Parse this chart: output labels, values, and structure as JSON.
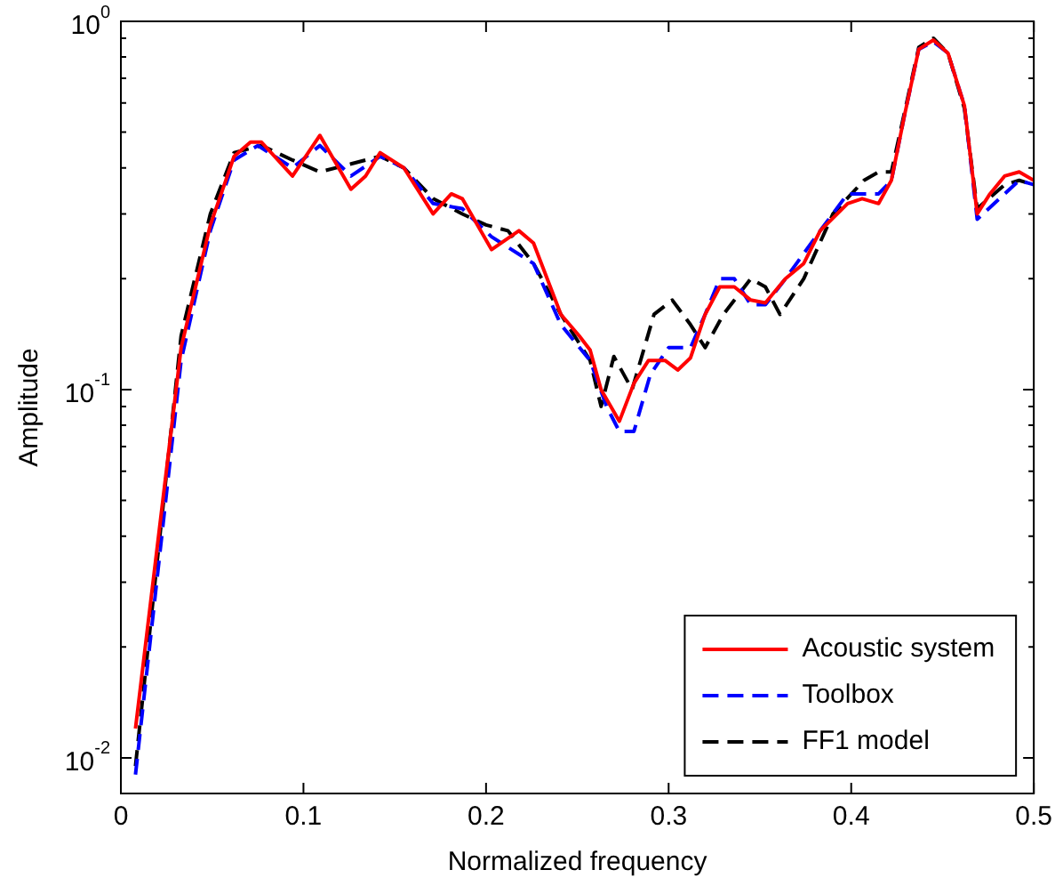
{
  "chart_data": {
    "type": "line",
    "xlabel": "Normalized frequency",
    "ylabel": "Amplitude",
    "log": "y",
    "legend": "bottom right",
    "grid": false,
    "xlim": [
      0,
      0.5
    ],
    "xticks": [
      0,
      0.1,
      0.2,
      0.3,
      0.4,
      0.5
    ],
    "ylim": [
      0.008,
      1
    ],
    "yticks": [
      {
        "value": 0.01,
        "label": "10$^{-2}$"
      },
      {
        "value": 0.02,
        "label": null
      },
      {
        "value": 0.03,
        "label": null
      },
      {
        "value": 0.04,
        "label": null
      },
      {
        "value": 0.05,
        "label": null
      },
      {
        "value": 0.06,
        "label": null
      },
      {
        "value": 0.07,
        "label": null
      },
      {
        "value": 0.08,
        "label": null
      },
      {
        "value": 0.09,
        "label": null
      },
      {
        "value": 0.1,
        "label": "10$^{-1}$"
      },
      {
        "value": 0.2,
        "label": null
      },
      {
        "value": 0.3,
        "label": null
      },
      {
        "value": 0.4,
        "label": null
      },
      {
        "value": 0.5,
        "label": null
      },
      {
        "value": 0.6,
        "label": null
      },
      {
        "value": 0.7,
        "label": null
      },
      {
        "value": 0.8,
        "label": null
      },
      {
        "value": 0.9,
        "label": null
      },
      {
        "value": 1,
        "label": "10$^{0}$"
      }
    ],
    "series": [
      {
        "name": "Acoustic system",
        "color": "#ff0000",
        "line_style": "solid",
        "x": [
          0.008,
          0.033,
          0.049,
          0.054,
          0.062,
          0.071,
          0.077,
          0.094,
          0.109,
          0.126,
          0.134,
          0.142,
          0.155,
          0.171,
          0.181,
          0.187,
          0.203,
          0.218,
          0.226,
          0.241,
          0.251,
          0.257,
          0.263,
          0.273,
          0.281,
          0.289,
          0.298,
          0.305,
          0.312,
          0.32,
          0.328,
          0.336,
          0.345,
          0.353,
          0.364,
          0.374,
          0.383,
          0.398,
          0.406,
          0.415,
          0.422,
          0.429,
          0.437,
          0.445,
          0.453,
          0.462,
          0.469,
          0.476,
          0.484,
          0.492,
          0.5
        ],
        "values": [
          0.012,
          0.13,
          0.28,
          0.33,
          0.43,
          0.47,
          0.47,
          0.38,
          0.49,
          0.35,
          0.38,
          0.44,
          0.4,
          0.3,
          0.34,
          0.33,
          0.24,
          0.27,
          0.25,
          0.16,
          0.14,
          0.128,
          0.1,
          0.082,
          0.104,
          0.12,
          0.12,
          0.113,
          0.122,
          0.16,
          0.19,
          0.19,
          0.175,
          0.172,
          0.2,
          0.22,
          0.27,
          0.32,
          0.33,
          0.32,
          0.37,
          0.55,
          0.84,
          0.89,
          0.82,
          0.59,
          0.3,
          0.34,
          0.38,
          0.39,
          0.37
        ]
      },
      {
        "name": "Toolbox",
        "color": "#0000ff",
        "line_style": "dashed",
        "x": [
          0.008,
          0.033,
          0.049,
          0.062,
          0.075,
          0.094,
          0.109,
          0.126,
          0.142,
          0.155,
          0.171,
          0.187,
          0.203,
          0.226,
          0.241,
          0.257,
          0.266,
          0.273,
          0.281,
          0.29,
          0.3,
          0.312,
          0.32,
          0.328,
          0.336,
          0.345,
          0.353,
          0.364,
          0.383,
          0.398,
          0.415,
          0.422,
          0.429,
          0.437,
          0.445,
          0.453,
          0.462,
          0.469,
          0.484,
          0.492,
          0.5
        ],
        "values": [
          0.009,
          0.12,
          0.27,
          0.42,
          0.46,
          0.4,
          0.46,
          0.38,
          0.43,
          0.4,
          0.32,
          0.31,
          0.26,
          0.22,
          0.15,
          0.12,
          0.09,
          0.077,
          0.077,
          0.11,
          0.13,
          0.13,
          0.16,
          0.2,
          0.2,
          0.17,
          0.17,
          0.2,
          0.27,
          0.34,
          0.34,
          0.37,
          0.55,
          0.84,
          0.88,
          0.82,
          0.59,
          0.29,
          0.34,
          0.37,
          0.36
        ]
      },
      {
        "name": "FF1 model",
        "color": "#000000",
        "line_style": "dashed",
        "x": [
          0.008,
          0.033,
          0.049,
          0.062,
          0.077,
          0.094,
          0.109,
          0.126,
          0.142,
          0.155,
          0.171,
          0.187,
          0.2,
          0.212,
          0.226,
          0.241,
          0.257,
          0.263,
          0.27,
          0.28,
          0.292,
          0.302,
          0.312,
          0.32,
          0.33,
          0.345,
          0.353,
          0.361,
          0.374,
          0.39,
          0.407,
          0.415,
          0.422,
          0.429,
          0.437,
          0.445,
          0.453,
          0.462,
          0.469,
          0.484,
          0.492,
          0.5
        ],
        "values": [
          0.0095,
          0.14,
          0.3,
          0.44,
          0.46,
          0.42,
          0.39,
          0.41,
          0.43,
          0.4,
          0.33,
          0.3,
          0.28,
          0.27,
          0.22,
          0.16,
          0.12,
          0.09,
          0.123,
          0.1,
          0.16,
          0.175,
          0.15,
          0.13,
          0.16,
          0.2,
          0.19,
          0.16,
          0.2,
          0.3,
          0.37,
          0.39,
          0.39,
          0.56,
          0.85,
          0.9,
          0.82,
          0.58,
          0.31,
          0.36,
          0.37,
          0.36
        ]
      }
    ]
  }
}
